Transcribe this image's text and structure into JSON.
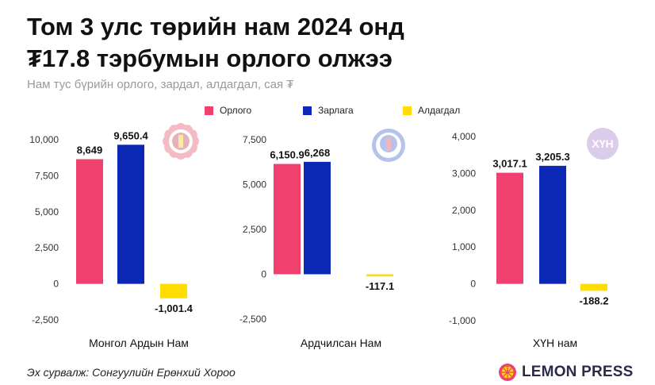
{
  "header": {
    "title_line1": "Том 3 улс төрийн нам 2024 онд",
    "title_line2": "₮17.8 тэрбумын орлого олжээ",
    "subtitle": "Нам тус бүрийн орлого, зардал, алдагдал, сая ₮"
  },
  "legend": [
    {
      "label": "Орлого",
      "color": "#f0406e"
    },
    {
      "label": "Зарлага",
      "color": "#0a28b4"
    },
    {
      "label": "Алдагдал",
      "color": "#ffdd00"
    }
  ],
  "chart_data": [
    {
      "type": "bar",
      "xlabel": "Монгол Ардын Нам",
      "categories": [
        "Орлого",
        "Зарлага",
        "Алдагдал"
      ],
      "values": [
        8649,
        9650.4,
        -1001.4
      ],
      "value_labels": [
        "8,649",
        "9,650.4",
        "-1,001.4"
      ],
      "yticks": [
        10000,
        7500,
        5000,
        2500,
        0,
        -2500
      ],
      "ytick_labels": [
        "10,000",
        "7,500",
        "5,000",
        "2,500",
        "0",
        "-2,500"
      ],
      "ylim": [
        -2500,
        10000
      ],
      "logo": "mpp-emblem-icon"
    },
    {
      "type": "bar",
      "xlabel": "Ардчилсан Нам",
      "categories": [
        "Орлого",
        "Зарлага",
        "Алдагдал"
      ],
      "values": [
        6150.9,
        6268,
        -117.1
      ],
      "value_labels": [
        "6,150.9",
        "6,268",
        "-117.1"
      ],
      "yticks": [
        7500,
        5000,
        2500,
        0,
        -2500
      ],
      "ytick_labels": [
        "7,500",
        "5,000",
        "2,500",
        "0",
        "-2,500"
      ],
      "ylim": [
        -2500,
        7500
      ],
      "logo": "dp-emblem-icon"
    },
    {
      "type": "bar",
      "xlabel": "ХҮН нам",
      "categories": [
        "Орлого",
        "Зарлага",
        "Алдагдал"
      ],
      "values": [
        3017.1,
        3205.3,
        -188.2
      ],
      "value_labels": [
        "3,017.1",
        "3,205.3",
        "-188.2"
      ],
      "yticks": [
        4000,
        3000,
        2000,
        1000,
        0,
        -1000
      ],
      "ytick_labels": [
        "4,000",
        "3,000",
        "2,000",
        "1,000",
        "0",
        "-1,000"
      ],
      "ylim": [
        -1000,
        4000
      ],
      "logo": "hun-emblem-icon",
      "logo_text": "ХҮН"
    }
  ],
  "footer": {
    "source": "Эх сурвалж: Сонгуулийн Ерөнхий Хороо",
    "brand": "LEMON PRESS"
  }
}
